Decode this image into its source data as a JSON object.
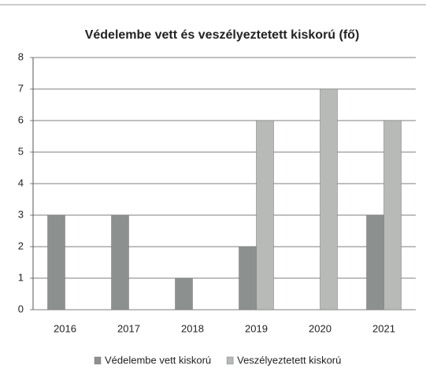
{
  "chart_data": {
    "type": "bar",
    "title": "Védelembe vett és veszélyeztetett kiskorú (fő)",
    "categories": [
      "2016",
      "2017",
      "2018",
      "2019",
      "2020",
      "2021"
    ],
    "series": [
      {
        "name": "Védelembe vett kiskorú",
        "color": "#8c908e",
        "values": [
          3,
          3,
          1,
          2,
          0,
          3
        ]
      },
      {
        "name": "Veszélyeztetett kiskorú",
        "color": "#b7bab7",
        "values": [
          0,
          0,
          0,
          6,
          7,
          6
        ]
      }
    ],
    "ylim": [
      0,
      8
    ],
    "yticks": [
      0,
      1,
      2,
      3,
      4,
      5,
      6,
      7,
      8
    ],
    "grid": true,
    "legend": "bottom"
  }
}
